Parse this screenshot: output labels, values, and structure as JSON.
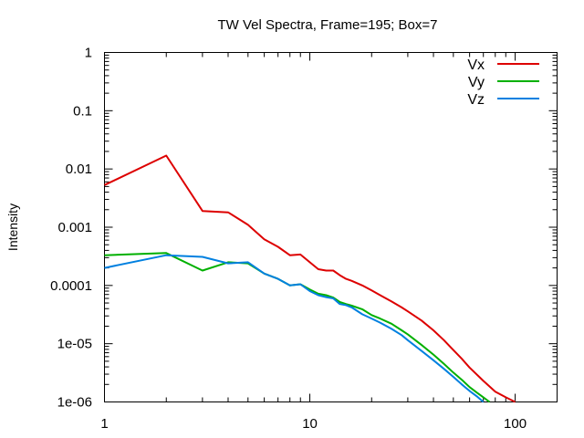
{
  "chart_data": {
    "type": "line",
    "title": "TW Vel Spectra, Frame=195; Box=7",
    "xlabel": "",
    "ylabel": "Intensity",
    "x_scale": "log",
    "y_scale": "log",
    "xlim": [
      1,
      160
    ],
    "ylim": [
      1e-06,
      1
    ],
    "grid": false,
    "legend_position": "top-right",
    "x_ticks": [
      {
        "value": 1,
        "label": "1"
      },
      {
        "value": 10,
        "label": "10"
      },
      {
        "value": 100,
        "label": "100"
      }
    ],
    "y_ticks": [
      {
        "value": 1,
        "label": "1"
      },
      {
        "value": 0.1,
        "label": "0.1"
      },
      {
        "value": 0.01,
        "label": "0.01"
      },
      {
        "value": 0.001,
        "label": "0.001"
      },
      {
        "value": 0.0001,
        "label": "0.0001"
      },
      {
        "value": 1e-05,
        "label": "1e-05"
      },
      {
        "value": 1e-06,
        "label": "1e-06"
      }
    ],
    "series": [
      {
        "name": "Vx",
        "color": "#dd0000",
        "x": [
          1,
          2,
          3,
          4,
          5,
          6,
          7,
          8,
          9,
          10,
          11,
          12,
          13,
          14,
          15,
          16,
          18,
          20,
          22,
          25,
          28,
          30,
          35,
          40,
          45,
          50,
          55,
          60,
          70,
          80,
          90,
          100
        ],
        "y": [
          0.0053,
          0.017,
          0.0019,
          0.0018,
          0.0011,
          0.00062,
          0.00046,
          0.00033,
          0.00034,
          0.00025,
          0.00019,
          0.00018,
          0.00018,
          0.00015,
          0.00013,
          0.00012,
          0.0001,
          8.2e-05,
          6.8e-05,
          5.3e-05,
          4.2e-05,
          3.6e-05,
          2.5e-05,
          1.7e-05,
          1.15e-05,
          7.8e-06,
          5.5e-06,
          3.9e-06,
          2.3e-06,
          1.5e-06,
          1.2e-06,
          1e-06
        ]
      },
      {
        "name": "Vy",
        "color": "#00b000",
        "x": [
          1,
          2,
          3,
          4,
          5,
          6,
          7,
          8,
          9,
          10,
          11,
          12,
          13,
          14,
          15,
          16,
          18,
          20,
          22,
          25,
          28,
          30,
          35,
          40,
          45,
          50,
          55,
          60,
          65,
          70,
          75
        ],
        "y": [
          0.00033,
          0.00036,
          0.00018,
          0.00025,
          0.00024,
          0.00016,
          0.00013,
          0.0001,
          0.000105,
          8.5e-05,
          7.2e-05,
          6.8e-05,
          6.2e-05,
          5.2e-05,
          4.8e-05,
          4.5e-05,
          3.9e-05,
          3.1e-05,
          2.7e-05,
          2.2e-05,
          1.7e-05,
          1.45e-05,
          9.5e-06,
          6.5e-06,
          4.5e-06,
          3.2e-06,
          2.4e-06,
          1.8e-06,
          1.45e-06,
          1.2e-06,
          1e-06
        ]
      },
      {
        "name": "Vz",
        "color": "#0080e0",
        "x": [
          1,
          2,
          3,
          4,
          5,
          6,
          7,
          8,
          9,
          10,
          11,
          12,
          13,
          14,
          15,
          16,
          18,
          20,
          22,
          25,
          28,
          30,
          35,
          40,
          45,
          50,
          55,
          60,
          65,
          70
        ],
        "y": [
          0.0002,
          0.00033,
          0.00031,
          0.00024,
          0.00025,
          0.00016,
          0.00013,
          0.0001,
          0.000105,
          8e-05,
          6.8e-05,
          6.3e-05,
          6e-05,
          4.8e-05,
          4.6e-05,
          4.2e-05,
          3.2e-05,
          2.7e-05,
          2.3e-05,
          1.8e-05,
          1.4e-05,
          1.15e-05,
          7.5e-06,
          5.2e-06,
          3.7e-06,
          2.7e-06,
          2e-06,
          1.55e-06,
          1.25e-06,
          1e-06
        ]
      }
    ]
  }
}
